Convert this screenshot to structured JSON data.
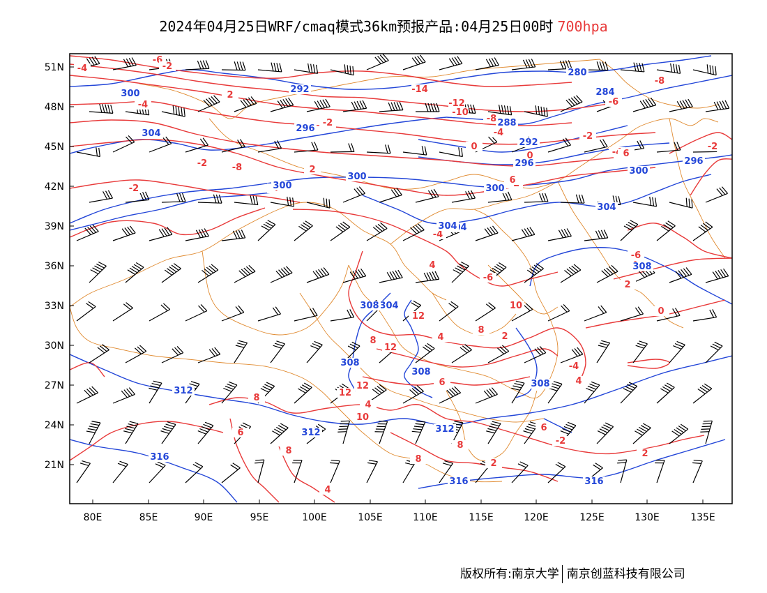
{
  "title": {
    "main": "2024年04月25日WRF/cmaq模式36km预报产品:04月25日00时",
    "level": "700hpa"
  },
  "axes": {
    "lat_labels": [
      "51N",
      "48N",
      "45N",
      "42N",
      "39N",
      "36N",
      "33N",
      "30N",
      "27N",
      "24N",
      "21N"
    ],
    "lon_labels": [
      "80E",
      "85E",
      "90E",
      "95E",
      "100E",
      "105E",
      "110E",
      "115E",
      "120E",
      "125E",
      "130E",
      "135E"
    ]
  },
  "colors": {
    "temperature": "#e83a3a",
    "geopotential": "#2346d8",
    "boundary": "#e08a30",
    "wind": "#000000"
  },
  "legend_hint": {
    "red_contours": "temperature",
    "blue_contours": "geopotential height",
    "black_barbs": "wind"
  },
  "contour_labels": {
    "red": [
      "-4",
      "-6",
      "-2",
      "-4",
      "2",
      "-2",
      "-14",
      "-12",
      "-10",
      "-8",
      "-8",
      "-6",
      "-4",
      "-2",
      "0",
      "-2",
      "-4",
      "0",
      "-2",
      "-8",
      "2",
      "4",
      "-2",
      "-4",
      "-2",
      "-6",
      "2",
      "0",
      "4",
      "-6",
      "8",
      "4",
      "2",
      "-4",
      "4",
      "6",
      "8",
      "4",
      "6",
      "8",
      "4",
      "2",
      "-2",
      "2",
      "4",
      "6",
      "6",
      "6",
      "8",
      "10",
      "12",
      "12",
      "12",
      "12",
      "10",
      "8",
      "8",
      "6"
    ],
    "blue": [
      "292",
      "300",
      "296",
      "304",
      "280",
      "284",
      "288",
      "292",
      "296",
      "300",
      "304",
      "300",
      "300",
      "304",
      "304",
      "308",
      "308",
      "308",
      "308",
      "312",
      "312",
      "312",
      "316",
      "316",
      "316",
      "296",
      "300",
      "304",
      "308"
    ]
  },
  "footer": {
    "copyright": "版权所有:南京大学",
    "company": "南京创蓝科技有限公司"
  }
}
